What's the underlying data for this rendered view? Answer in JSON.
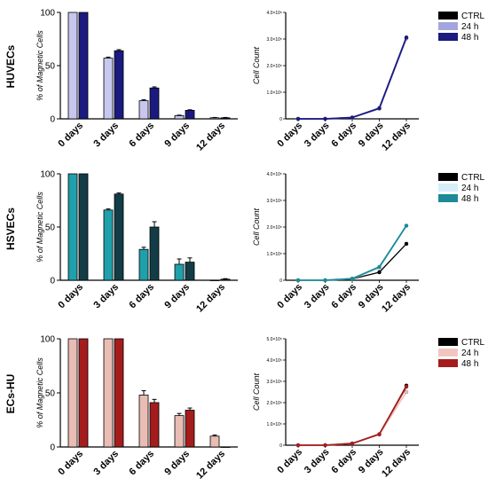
{
  "chart_data": [
    {
      "type": "bar",
      "row_label": "HUVECs",
      "ylabel": "% of Magnetic Cells",
      "categories": [
        "0 days",
        "3 days",
        "6 days",
        "9 days",
        "12 days"
      ],
      "yticks": [
        "0",
        "50",
        "100"
      ],
      "ylim": [
        0,
        100
      ],
      "series": [
        {
          "values": [
            100,
            57,
            17,
            3,
            1
          ],
          "errors": [
            0,
            1,
            1,
            0.5,
            0.3
          ],
          "color": "#c7c7ef"
        },
        {
          "values": [
            100,
            64,
            29,
            8,
            1
          ],
          "errors": [
            0,
            1,
            1,
            0.5,
            0.3
          ],
          "color": "#1a1a80"
        }
      ]
    },
    {
      "type": "line",
      "ylabel": "Cell Count",
      "categories": [
        "0 days",
        "3 days",
        "6 days",
        "9 days",
        "12 days"
      ],
      "yticks": [
        "0",
        "1.0×10⁵",
        "2.0×10⁵",
        "3.0×10⁵",
        "4.0×10⁵"
      ],
      "ylim": [
        0,
        400000
      ],
      "legend": "top-right",
      "series": [
        {
          "name": "CTRL",
          "values": [
            0,
            0,
            5000,
            40000,
            305000
          ],
          "color": "#000000"
        },
        {
          "name": "24 h",
          "values": [
            0,
            0,
            5000,
            38000,
            302000
          ],
          "color": "#a5a5dd"
        },
        {
          "name": "48 h",
          "values": [
            0,
            0,
            5000,
            40000,
            306000
          ],
          "color": "#1a1a80"
        }
      ]
    },
    {
      "type": "bar",
      "row_label": "HSVECs",
      "ylabel": "% of Magnetic Cells",
      "categories": [
        "0 days",
        "3 days",
        "6 days",
        "9 days",
        "12 days"
      ],
      "yticks": [
        "0",
        "50",
        "100"
      ],
      "ylim": [
        0,
        100
      ],
      "series": [
        {
          "values": [
            100,
            66,
            29,
            15,
            0
          ],
          "errors": [
            0,
            1,
            2,
            5,
            0
          ],
          "color": "#1fa0ab"
        },
        {
          "values": [
            100,
            81,
            50,
            17,
            1
          ],
          "errors": [
            0,
            1,
            5,
            4,
            0.5
          ],
          "color": "#123d47"
        }
      ]
    },
    {
      "type": "line",
      "ylabel": "Cell Count",
      "categories": [
        "0 days",
        "3 days",
        "6 days",
        "9 days",
        "12 days"
      ],
      "yticks": [
        "0",
        "1.0×10⁵",
        "2.0×10⁵",
        "3.0×10⁵",
        "4.0×10⁵"
      ],
      "ylim": [
        0,
        400000
      ],
      "legend": "top-right",
      "series": [
        {
          "name": "CTRL",
          "values": [
            0,
            0,
            5000,
            30000,
            137000
          ],
          "color": "#000000"
        },
        {
          "name": "24 h",
          "values": [
            0,
            0,
            6000,
            45000,
            205000
          ],
          "color": "#d6eef7"
        },
        {
          "name": "48 h",
          "values": [
            0,
            0,
            6000,
            50000,
            205000
          ],
          "color": "#1d8a98"
        }
      ]
    },
    {
      "type": "bar",
      "row_label": "ECs-HU",
      "ylabel": "% of Magnetic Cells",
      "categories": [
        "0 days",
        "3 days",
        "6 days",
        "9 days",
        "12 days"
      ],
      "yticks": [
        "0",
        "50",
        "100"
      ],
      "ylim": [
        0,
        100
      ],
      "series": [
        {
          "values": [
            100,
            100,
            48,
            29,
            10
          ],
          "errors": [
            0,
            0,
            4,
            2,
            1
          ],
          "color": "#e9bcb4"
        },
        {
          "values": [
            100,
            100,
            41,
            34,
            0
          ],
          "errors": [
            0,
            0,
            3,
            2,
            0
          ],
          "color": "#a51c1c"
        }
      ]
    },
    {
      "type": "line",
      "ylabel": "Cell Count",
      "categories": [
        "0 days",
        "3 days",
        "6 days",
        "9 days",
        "12 days"
      ],
      "yticks": [
        "0",
        "1.0×10⁵",
        "2.0×10⁵",
        "3.0×10⁵",
        "4.0×10⁵",
        "5.0×10⁵"
      ],
      "ylim": [
        0,
        500000
      ],
      "legend": "top-right",
      "series": [
        {
          "name": "CTRL",
          "values": [
            0,
            0,
            8000,
            50000,
            280000
          ],
          "color": "#000000"
        },
        {
          "name": "24 h",
          "values": [
            0,
            0,
            8000,
            50000,
            250000
          ],
          "color": "#f2c6c0"
        },
        {
          "name": "48 h",
          "values": [
            0,
            0,
            8000,
            52000,
            275000
          ],
          "color": "#a51c1c"
        }
      ]
    }
  ]
}
